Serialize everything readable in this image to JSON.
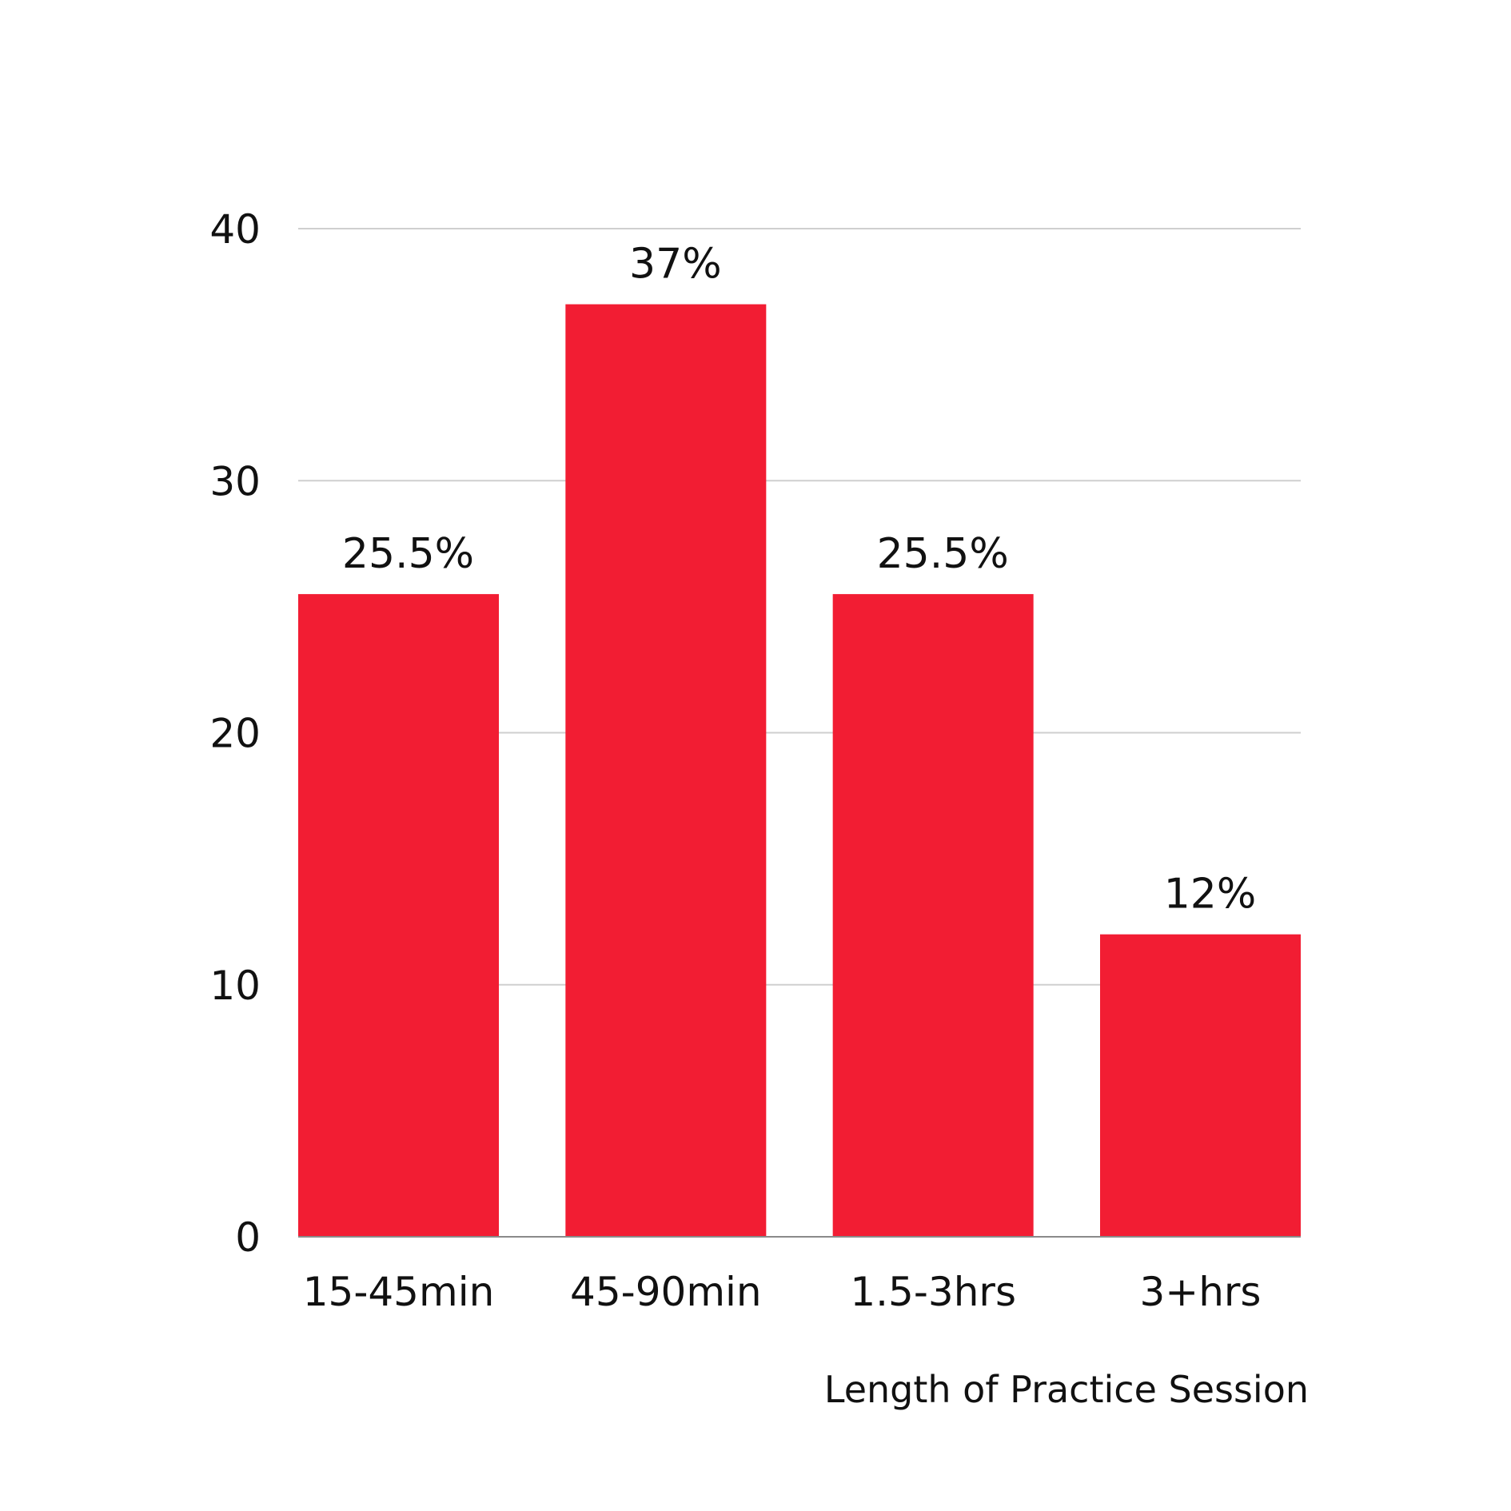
{
  "chart_data": {
    "type": "bar",
    "categories": [
      "15-45min",
      "45-90min",
      "1.5-3hrs",
      "3+hrs"
    ],
    "values": [
      25.5,
      37,
      25.5,
      12
    ],
    "data_labels": [
      "25.5%",
      "37%",
      "25.5%",
      "12%"
    ],
    "title": "",
    "xlabel": "Length of Practice Session",
    "ylabel": "",
    "ylim": [
      0,
      40
    ],
    "yticks": [
      0,
      10,
      20,
      30,
      40
    ],
    "grid": true,
    "legend": "none",
    "bar_color": "#f21d33"
  }
}
